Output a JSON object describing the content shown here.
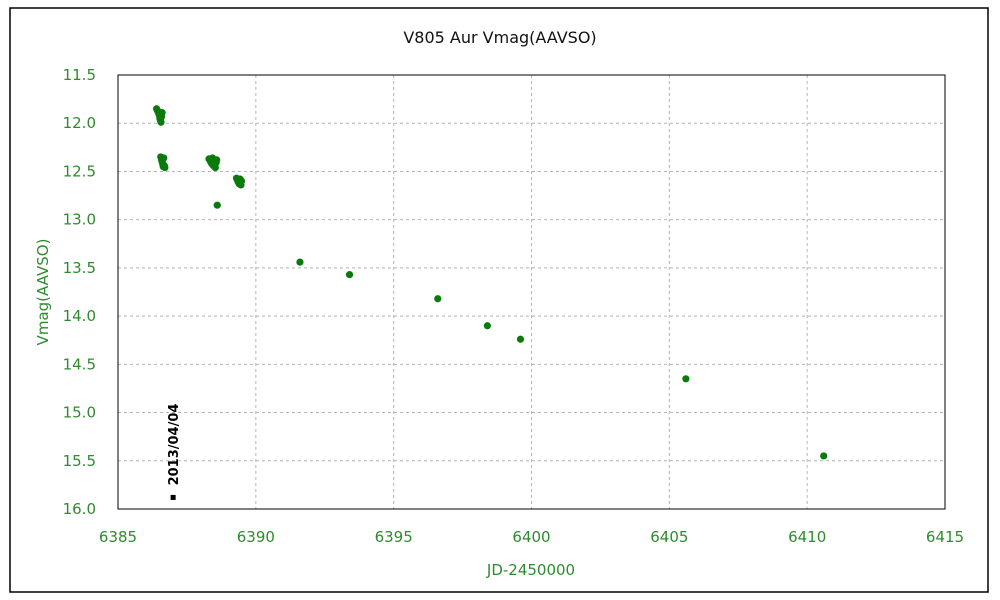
{
  "chart_data": {
    "type": "scatter",
    "title": "V805 Aur   Vmag(AAVSO)",
    "xlabel": "JD-2450000",
    "ylabel": "Vmag(AAVSO)",
    "xlim": [
      6385,
      6415
    ],
    "ylim": [
      11.5,
      16.0
    ],
    "y_inverted": true,
    "x_ticks": [
      "6385",
      "6390",
      "6395",
      "6400",
      "6405",
      "6410",
      "6415"
    ],
    "x_tick_values": [
      6385,
      6390,
      6395,
      6400,
      6405,
      6410,
      6415
    ],
    "y_ticks": [
      "11.5",
      "12.0",
      "12.5",
      "13.0",
      "13.5",
      "14.0",
      "14.5",
      "15.0",
      "15.5",
      "16.0"
    ],
    "y_tick_values": [
      11.5,
      12.0,
      12.5,
      13.0,
      13.5,
      14.0,
      14.5,
      15.0,
      15.5,
      16.0
    ],
    "grid": true,
    "series": [
      {
        "name": "Vmag(AAVSO)",
        "color": "#0a7a0a",
        "x": [
          6386.4,
          6386.43,
          6386.46,
          6386.48,
          6386.5,
          6386.52,
          6386.54,
          6386.56,
          6386.58,
          6386.6,
          6386.55,
          6386.58,
          6386.6,
          6386.62,
          6386.64,
          6386.66,
          6386.68,
          6386.7,
          6388.3,
          6388.33,
          6388.36,
          6388.4,
          6388.43,
          6388.46,
          6388.5,
          6388.53,
          6388.56,
          6388.58,
          6388.6,
          6389.3,
          6389.33,
          6389.36,
          6389.4,
          6389.43,
          6389.46,
          6389.48,
          6391.6,
          6393.4,
          6396.6,
          6398.4,
          6399.6,
          6405.6,
          6410.6
        ],
        "y": [
          11.85,
          11.87,
          11.88,
          11.9,
          11.92,
          11.95,
          11.97,
          11.99,
          11.93,
          11.89,
          12.35,
          12.38,
          12.4,
          12.42,
          12.45,
          12.36,
          12.44,
          12.46,
          12.37,
          12.38,
          12.4,
          12.42,
          12.36,
          12.44,
          12.39,
          12.46,
          12.41,
          12.38,
          12.85,
          12.57,
          12.59,
          12.61,
          12.63,
          12.58,
          12.64,
          12.6,
          13.44,
          13.57,
          13.82,
          14.1,
          14.24,
          14.65,
          15.45
        ]
      }
    ],
    "annotations": [
      {
        "text": "2013/04/04",
        "x": 6387.0,
        "y": 15.88
      }
    ]
  },
  "colors": {
    "axis_text": "#2e8b2e",
    "marker": "#0a7a0a",
    "grid": "#b4b4b4",
    "annotation": "#000000"
  }
}
